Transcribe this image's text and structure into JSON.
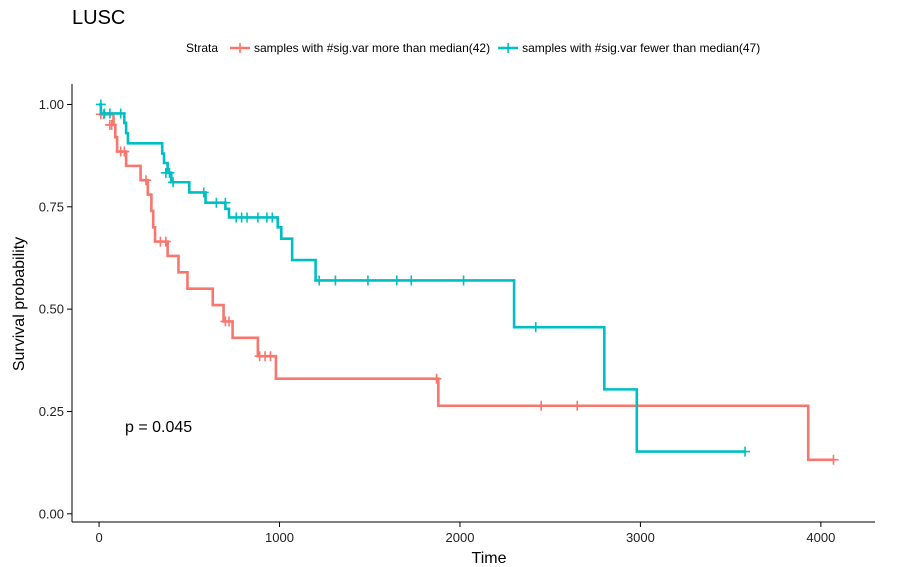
{
  "chart_data": {
    "type": "line",
    "chart_kind": "kaplan-meier-survival",
    "title": "LUSC",
    "xlabel": "Time",
    "ylabel": "Survival probability",
    "xlim": [
      -150,
      4300
    ],
    "ylim": [
      -0.02,
      1.05
    ],
    "xticks": [
      0,
      1000,
      2000,
      3000,
      4000
    ],
    "yticks": [
      "0.00",
      "0.25",
      "0.50",
      "0.75",
      "1.00"
    ],
    "grid": false,
    "legend": {
      "title": "Strata",
      "position": "top"
    },
    "annotation": "p = 0.045",
    "series": [
      {
        "name": "samples with #sig.var more than median(42)",
        "color": "#F8766D",
        "steps": [
          [
            0,
            0.976
          ],
          [
            80,
            0.95
          ],
          [
            90,
            0.92
          ],
          [
            100,
            0.885
          ],
          [
            150,
            0.85
          ],
          [
            230,
            0.815
          ],
          [
            270,
            0.78
          ],
          [
            290,
            0.74
          ],
          [
            300,
            0.7
          ],
          [
            310,
            0.665
          ],
          [
            380,
            0.63
          ],
          [
            440,
            0.59
          ],
          [
            490,
            0.55
          ],
          [
            630,
            0.51
          ],
          [
            690,
            0.47
          ],
          [
            740,
            0.43
          ],
          [
            880,
            0.385
          ],
          [
            980,
            0.33
          ],
          [
            1880,
            0.264
          ],
          [
            3930,
            0.132
          ],
          [
            4070,
            0.132
          ]
        ],
        "censored": [
          [
            10,
            0.976
          ],
          [
            25,
            0.976
          ],
          [
            60,
            0.95
          ],
          [
            70,
            0.95
          ],
          [
            120,
            0.885
          ],
          [
            140,
            0.885
          ],
          [
            260,
            0.815
          ],
          [
            340,
            0.665
          ],
          [
            370,
            0.665
          ],
          [
            700,
            0.47
          ],
          [
            720,
            0.47
          ],
          [
            890,
            0.385
          ],
          [
            920,
            0.385
          ],
          [
            950,
            0.385
          ],
          [
            1870,
            0.33
          ],
          [
            2450,
            0.264
          ],
          [
            2650,
            0.264
          ],
          [
            4070,
            0.132
          ]
        ]
      },
      {
        "name": "samples with #sig.var fewer than median(47)",
        "color": "#00BFC4",
        "steps": [
          [
            0,
            1.0
          ],
          [
            10,
            0.978
          ],
          [
            140,
            0.955
          ],
          [
            150,
            0.93
          ],
          [
            160,
            0.905
          ],
          [
            350,
            0.88
          ],
          [
            360,
            0.857
          ],
          [
            380,
            0.833
          ],
          [
            400,
            0.81
          ],
          [
            500,
            0.785
          ],
          [
            590,
            0.76
          ],
          [
            700,
            0.745
          ],
          [
            720,
            0.724
          ],
          [
            990,
            0.7
          ],
          [
            1010,
            0.672
          ],
          [
            1070,
            0.62
          ],
          [
            1200,
            0.57
          ],
          [
            2300,
            0.456
          ],
          [
            2800,
            0.304
          ],
          [
            2980,
            0.152
          ],
          [
            3580,
            0.152
          ]
        ],
        "censored": [
          [
            10,
            1.0
          ],
          [
            30,
            0.978
          ],
          [
            60,
            0.978
          ],
          [
            120,
            0.978
          ],
          [
            370,
            0.833
          ],
          [
            390,
            0.833
          ],
          [
            410,
            0.81
          ],
          [
            580,
            0.785
          ],
          [
            650,
            0.76
          ],
          [
            700,
            0.76
          ],
          [
            760,
            0.724
          ],
          [
            790,
            0.724
          ],
          [
            820,
            0.724
          ],
          [
            880,
            0.724
          ],
          [
            930,
            0.724
          ],
          [
            960,
            0.724
          ],
          [
            1220,
            0.57
          ],
          [
            1310,
            0.57
          ],
          [
            1490,
            0.57
          ],
          [
            1650,
            0.57
          ],
          [
            1730,
            0.57
          ],
          [
            2020,
            0.57
          ],
          [
            2420,
            0.456
          ],
          [
            3580,
            0.152
          ]
        ]
      }
    ]
  }
}
